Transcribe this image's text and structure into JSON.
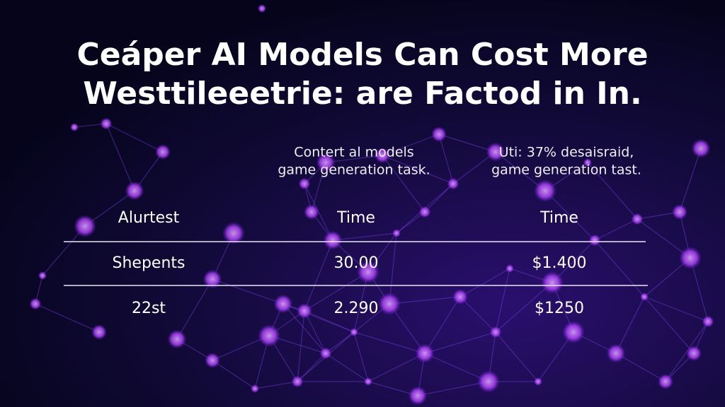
{
  "title": [
    "Ceáper AI Models Can Cost More",
    "Westtileeetrie: are Factod in In."
  ],
  "table": {
    "group_headers": [
      [
        "Contert al models",
        "game generation task."
      ],
      [
        "Uti: 37% desaisraid,",
        "game generation tast."
      ]
    ],
    "header": [
      "Alurtest",
      "Time",
      "Time"
    ],
    "rows": [
      [
        "Shepents",
        "30.00",
        "$1.400"
      ],
      [
        "22st",
        "2.290",
        "$1250"
      ]
    ]
  }
}
